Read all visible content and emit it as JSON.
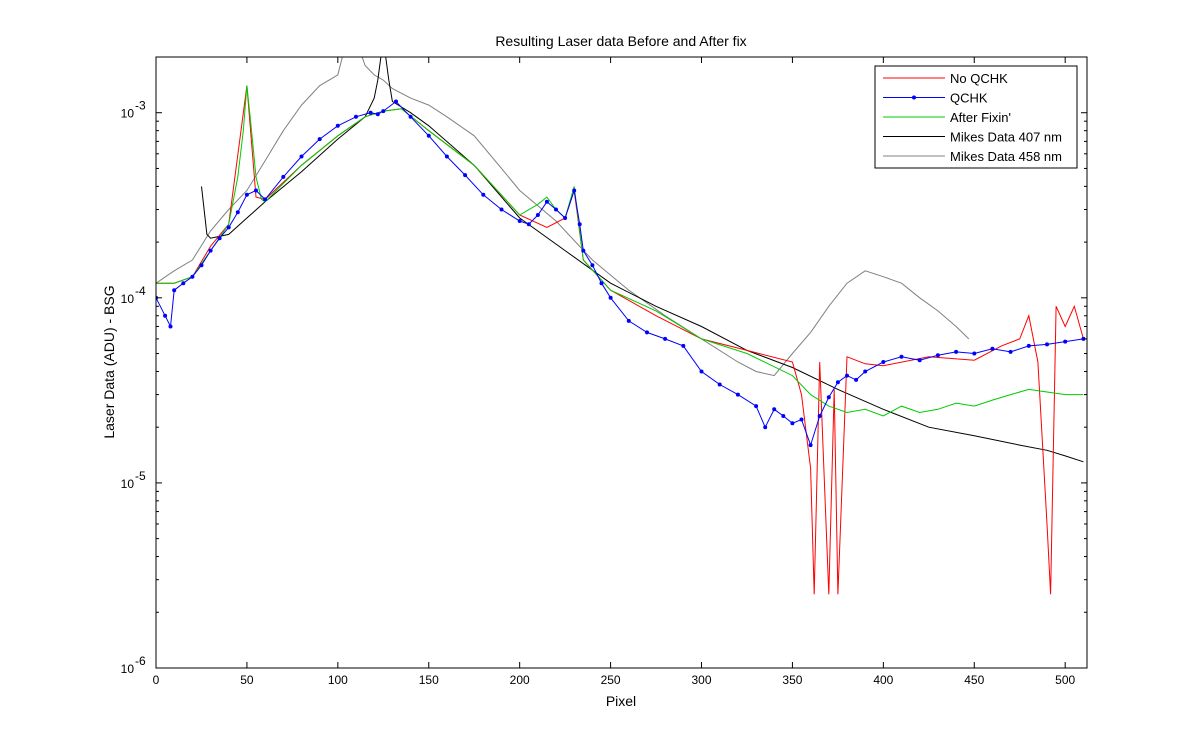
{
  "chart_data": {
    "type": "line",
    "title": "Resulting Laser data Before and After fix",
    "xlabel": "Pixel",
    "ylabel": "Laser Data (ADU) - BSG",
    "xlim": [
      0,
      512
    ],
    "ylim": [
      1e-06,
      0.002
    ],
    "yscale": "log",
    "grid": false,
    "legend_position": "top-right",
    "xticks": [
      0,
      50,
      100,
      150,
      200,
      250,
      300,
      350,
      400,
      450,
      500
    ],
    "yticks": [
      {
        "value": 1e-06,
        "exp": "-6"
      },
      {
        "value": 1e-05,
        "exp": "-5"
      },
      {
        "value": 0.0001,
        "exp": "-4"
      },
      {
        "value": 0.001,
        "exp": "-3"
      }
    ],
    "series": [
      {
        "name": "No QCHK",
        "color": "#ff0000",
        "marker": "none",
        "x": [
          0,
          10,
          20,
          30,
          40,
          50,
          55,
          60,
          80,
          100,
          115,
          125,
          135,
          150,
          175,
          200,
          215,
          225,
          230,
          235,
          250,
          275,
          300,
          325,
          350,
          355,
          360,
          362,
          365,
          370,
          373,
          375,
          380,
          390,
          400,
          425,
          450,
          465,
          475,
          480,
          485,
          490,
          492,
          495,
          500,
          505,
          510
        ],
        "values": [
          0.00012,
          0.00012,
          0.00013,
          0.00019,
          0.00025,
          0.0014,
          0.00035,
          0.00034,
          0.00052,
          0.00075,
          0.00095,
          0.00102,
          0.00105,
          0.0008,
          0.00052,
          0.00028,
          0.00024,
          0.00027,
          0.00038,
          0.00016,
          0.00011,
          8e-05,
          6e-05,
          5.2e-05,
          4.5e-05,
          3e-05,
          1.2e-05,
          2.5e-06,
          4.5e-05,
          2.5e-06,
          3.2e-05,
          2.5e-06,
          4.8e-05,
          4.4e-05,
          4.3e-05,
          4.8e-05,
          4.6e-05,
          5.5e-05,
          6e-05,
          8e-05,
          4.5e-05,
          6e-06,
          2.5e-06,
          9e-05,
          7e-05,
          9e-05,
          6e-05
        ]
      },
      {
        "name": "QCHK",
        "color": "#0000ff",
        "marker": "dot",
        "x": [
          0,
          5,
          8,
          10,
          15,
          20,
          25,
          30,
          35,
          40,
          45,
          50,
          55,
          60,
          70,
          80,
          90,
          100,
          110,
          118,
          122,
          125,
          132,
          140,
          150,
          160,
          170,
          180,
          190,
          200,
          205,
          210,
          215,
          220,
          225,
          230,
          233,
          235,
          240,
          245,
          250,
          260,
          270,
          280,
          290,
          300,
          310,
          320,
          330,
          335,
          340,
          345,
          350,
          355,
          360,
          365,
          370,
          375,
          380,
          385,
          390,
          400,
          410,
          420,
          430,
          440,
          450,
          460,
          470,
          480,
          490,
          500,
          510
        ],
        "values": [
          0.0001,
          8e-05,
          7e-05,
          0.00011,
          0.00012,
          0.00013,
          0.00015,
          0.00018,
          0.00021,
          0.00024,
          0.00029,
          0.00036,
          0.00038,
          0.00034,
          0.00045,
          0.00058,
          0.00072,
          0.00085,
          0.00095,
          0.001,
          0.00098,
          0.00102,
          0.00115,
          0.00095,
          0.00075,
          0.00058,
          0.00046,
          0.00036,
          0.0003,
          0.00026,
          0.00025,
          0.00028,
          0.00033,
          0.0003,
          0.00027,
          0.00038,
          0.00025,
          0.00018,
          0.00015,
          0.00012,
          0.0001,
          7.5e-05,
          6.5e-05,
          6e-05,
          5.5e-05,
          4e-05,
          3.4e-05,
          3e-05,
          2.6e-05,
          2e-05,
          2.5e-05,
          2.3e-05,
          2.1e-05,
          2.2e-05,
          1.6e-05,
          2.3e-05,
          2.9e-05,
          3.5e-05,
          3.8e-05,
          3.6e-05,
          4e-05,
          4.5e-05,
          4.8e-05,
          4.6e-05,
          4.9e-05,
          5.1e-05,
          5e-05,
          5.3e-05,
          5.1e-05,
          5.5e-05,
          5.6e-05,
          5.8e-05,
          6e-05
        ]
      },
      {
        "name": "After Fixin'",
        "color": "#00cc00",
        "marker": "none",
        "x": [
          0,
          10,
          20,
          30,
          40,
          45,
          48,
          50,
          52,
          55,
          58,
          60,
          80,
          100,
          115,
          125,
          135,
          150,
          175,
          200,
          210,
          215,
          220,
          225,
          230,
          235,
          250,
          275,
          300,
          325,
          350,
          360,
          370,
          380,
          390,
          400,
          410,
          420,
          430,
          440,
          450,
          460,
          470,
          480,
          490,
          500,
          510
        ],
        "values": [
          0.00012,
          0.00012,
          0.00013,
          0.00018,
          0.00025,
          0.00045,
          0.0008,
          0.0014,
          0.0009,
          0.00045,
          0.00034,
          0.00033,
          0.00052,
          0.00075,
          0.00095,
          0.00102,
          0.00105,
          0.0008,
          0.00052,
          0.00028,
          0.00032,
          0.00035,
          0.0003,
          0.00027,
          0.0004,
          0.00016,
          0.00011,
          8.5e-05,
          6e-05,
          5e-05,
          3.8e-05,
          3e-05,
          2.6e-05,
          2.4e-05,
          2.5e-05,
          2.3e-05,
          2.6e-05,
          2.4e-05,
          2.5e-05,
          2.7e-05,
          2.6e-05,
          2.8e-05,
          3e-05,
          3.2e-05,
          3.1e-05,
          3e-05,
          3e-05
        ]
      },
      {
        "name": "Mikes Data 407 nm",
        "color": "#000000",
        "marker": "none",
        "x": [
          25,
          28,
          30,
          40,
          50,
          60,
          80,
          100,
          115,
          120,
          122,
          125,
          128,
          130,
          140,
          150,
          175,
          200,
          225,
          250,
          275,
          300,
          325,
          350,
          375,
          400,
          425,
          450,
          475,
          490,
          500,
          510
        ],
        "values": [
          0.0004,
          0.00022,
          0.00021,
          0.00022,
          0.00027,
          0.00033,
          0.00048,
          0.00072,
          0.00095,
          0.0012,
          0.0015,
          0.0025,
          0.0015,
          0.00115,
          0.001,
          0.00085,
          0.00052,
          0.00027,
          0.00018,
          0.00012,
          9e-05,
          7e-05,
          5.2e-05,
          4.2e-05,
          3.2e-05,
          2.5e-05,
          2e-05,
          1.8e-05,
          1.6e-05,
          1.5e-05,
          1.4e-05,
          1.3e-05
        ]
      },
      {
        "name": "Mikes Data 458 nm",
        "color": "#808080",
        "marker": "none",
        "x": [
          0,
          10,
          20,
          30,
          40,
          50,
          60,
          70,
          80,
          90,
          100,
          105,
          110,
          115,
          120,
          125,
          130,
          140,
          150,
          160,
          175,
          190,
          200,
          220,
          240,
          260,
          280,
          300,
          320,
          330,
          340,
          350,
          360,
          370,
          380,
          390,
          400,
          410,
          420,
          430,
          440,
          447
        ],
        "values": [
          0.00012,
          0.00014,
          0.00016,
          0.00023,
          0.0003,
          0.00038,
          0.00055,
          0.0008,
          0.0011,
          0.0014,
          0.0016,
          0.0025,
          0.0025,
          0.0018,
          0.0016,
          0.0015,
          0.00135,
          0.0012,
          0.0011,
          0.00095,
          0.00075,
          0.0005,
          0.00038,
          0.00026,
          0.00016,
          0.00011,
          8e-05,
          6e-05,
          4.5e-05,
          4e-05,
          3.8e-05,
          5e-05,
          6.5e-05,
          9e-05,
          0.00012,
          0.00014,
          0.00013,
          0.00012,
          0.0001,
          8.5e-05,
          7e-05,
          6e-05
        ]
      }
    ]
  }
}
